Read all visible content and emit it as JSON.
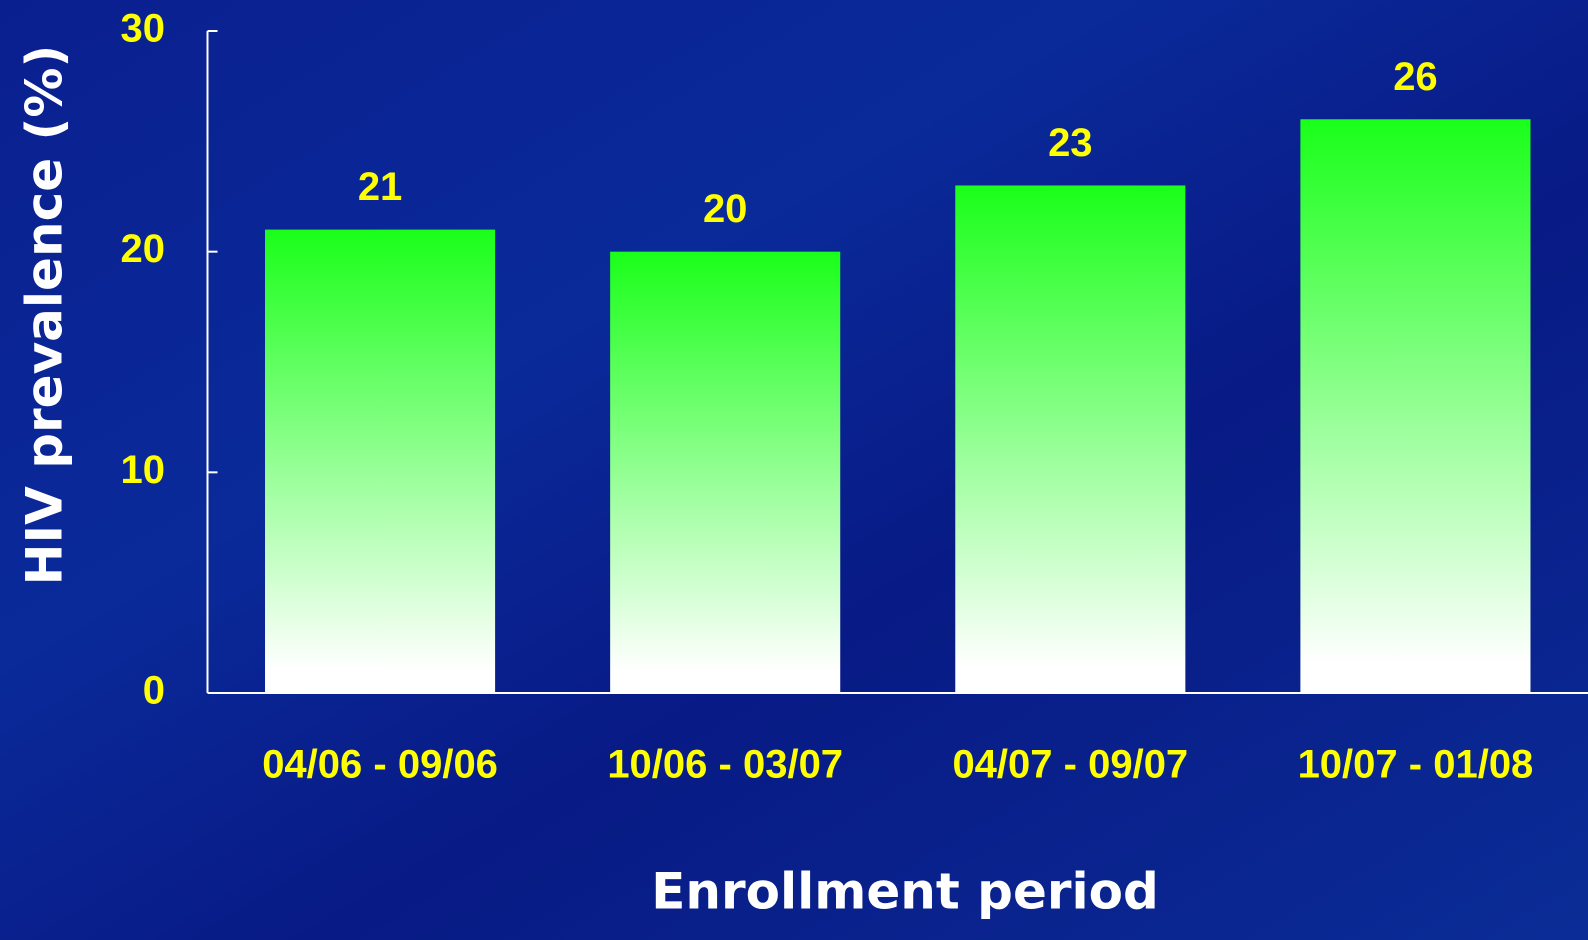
{
  "chart_data": {
    "type": "bar",
    "x_label": "Enrollment period",
    "y_label": "HIV prevalence (%)",
    "categories": [
      "04/06 - 09/06",
      "10/06 - 03/07",
      "04/07 - 09/07",
      "10/07 - 01/08"
    ],
    "values": [
      21,
      20,
      23,
      26
    ],
    "color": "#1aff1a",
    "ylim": [
      0,
      30
    ],
    "yticks": [
      0,
      10,
      20,
      30
    ],
    "grid": false
  }
}
